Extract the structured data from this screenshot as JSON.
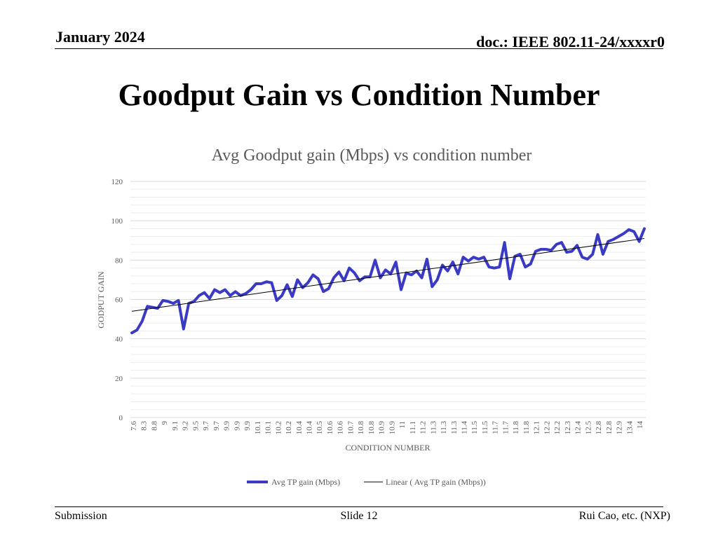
{
  "header": {
    "date": "January 2024",
    "doc": "doc.: IEEE 802.11-24/xxxxr0"
  },
  "slide": {
    "title": "Goodput Gain vs Condition Number"
  },
  "footer": {
    "left": "Submission",
    "center": "Slide 12",
    "right": "Rui Cao, etc. (NXP)"
  },
  "colors": {
    "series": "#3A3AC4",
    "trend": "#000000",
    "grid": "#D9D9D9",
    "axis_text": "#595959"
  },
  "chart_data": {
    "type": "line",
    "title": "Avg Goodput gain (Mbps) vs condition number",
    "xlabel": "CONDITION NUMBER",
    "ylabel": "GODPUT GAIN",
    "ylim": [
      0,
      120
    ],
    "yticks": [
      0,
      20,
      40,
      60,
      80,
      100,
      120
    ],
    "grid": "horizontal major and minor",
    "legend_position": "bottom",
    "x_tick_labels": [
      "7.6",
      "8.3",
      "8.8",
      "9",
      "9.1",
      "9.2",
      "9.5",
      "9.7",
      "9.7",
      "9.9",
      "9.9",
      "9.9",
      "10.1",
      "10.1",
      "10.2",
      "10.2",
      "10.4",
      "10.4",
      "10.5",
      "10.6",
      "10.6",
      "10.7",
      "10.8",
      "10.8",
      "10.9",
      "10.9",
      "11",
      "11.1",
      "11.2",
      "11.3",
      "11.3",
      "11.3",
      "11.4",
      "11.5",
      "11.5",
      "11.7",
      "11.7",
      "11.8",
      "11.8",
      "12.1",
      "12.2",
      "12.2",
      "12.3",
      "12.4",
      "12.5",
      "12.8",
      "12.8",
      "12.9",
      "13.4",
      "14"
    ],
    "series": [
      {
        "name": "Avg TP gain (Mbps)",
        "values": [
          43,
          44.5,
          49,
          56.5,
          56,
          55.5,
          59.5,
          59,
          58,
          59.5,
          45,
          58,
          59,
          62,
          63.5,
          60.5,
          65,
          63.5,
          65,
          62,
          64,
          62,
          63,
          65,
          68,
          68,
          69,
          68.5,
          59.5,
          62,
          67.5,
          61.5,
          70,
          66,
          68.5,
          72.5,
          70.5,
          64,
          65.5,
          71,
          74,
          69.5,
          76,
          73.5,
          69.5,
          71.5,
          71.5,
          80,
          71,
          75,
          73,
          79,
          65,
          73.5,
          72.5,
          74.5,
          71,
          80.5,
          66.5,
          70,
          77.5,
          74.5,
          79,
          73,
          81.5,
          79.5,
          81.5,
          80.5,
          81.5,
          76.5,
          76,
          76.5,
          89,
          70.5,
          82,
          83,
          76.5,
          78,
          84.5,
          85.5,
          85.5,
          85,
          88,
          89,
          84,
          84.5,
          87.5,
          81.5,
          80.5,
          83,
          93,
          83,
          89.5,
          90.5,
          92,
          93.5,
          95.5,
          94.5,
          89.5,
          96
        ]
      },
      {
        "name": "Linear ( Avg TP gain (Mbps))",
        "trend": "linear",
        "start": 54,
        "end": 91
      }
    ]
  }
}
